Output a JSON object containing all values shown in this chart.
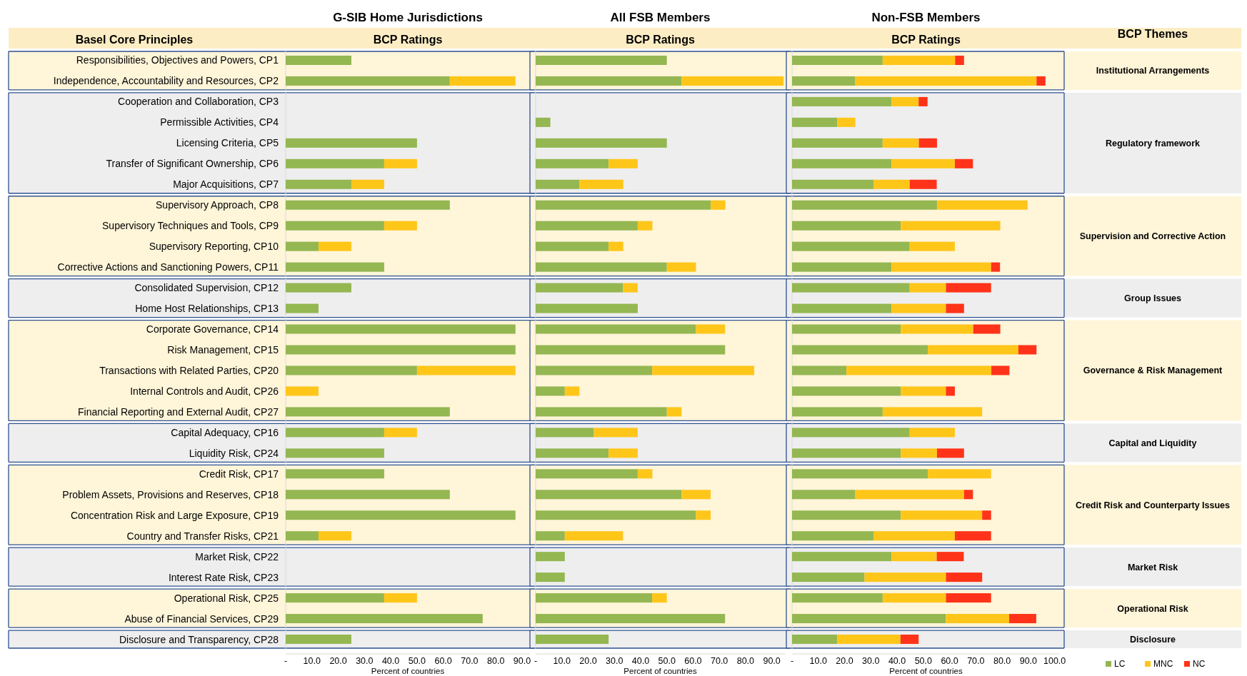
{
  "chart_data": [
    {
      "type": "bar",
      "orientation": "horizontal",
      "stacked": true,
      "title": "G-SIB Home Jurisdictions",
      "subtitle": "BCP Ratings",
      "ylabel": "Basel Core Principles",
      "xlabel": "Percent of countries",
      "categories": [
        "Responsibilities, Objectives and Powers, CP1",
        "Independence, Accountability and Resources, CP2",
        "Cooperation and Collaboration, CP3",
        "Permissible Activities, CP4",
        "Licensing Criteria, CP5",
        "Transfer of Significant Ownership, CP6",
        "Major Acquisitions, CP7",
        "Supervisory Approach, CP8",
        "Supervisory Techniques and Tools, CP9",
        "Supervisory Reporting, CP10",
        "Corrective Actions and Sanctioning Powers, CP11",
        "Consolidated Supervision, CP12",
        "Home Host Relationships, CP13",
        "Corporate Governance, CP14",
        "Risk Management, CP15",
        "Transactions with Related Parties, CP20",
        "Internal Controls and Audit, CP26",
        "Financial Reporting and External Audit, CP27",
        "Capital Adequacy, CP16",
        "Liquidity Risk, CP24",
        "Credit Risk, CP17",
        "Problem Assets, Provisions and Reserves, CP18",
        "Concentration Risk and Large Exposure, CP19",
        "Country and Transfer Risks, CP21",
        "Market Risk, CP22",
        "Interest Rate Risk, CP23",
        "Operational Risk, CP25",
        "Abuse of Financial Services, CP29",
        "Disclosure and Transparency, CP28"
      ],
      "series": [
        {
          "color": "#94b752",
          "values": [
            25,
            62.5,
            null,
            null,
            50,
            37.5,
            25,
            62.5,
            37.5,
            12.5,
            37.5,
            25,
            12.5,
            87.5,
            87.5,
            50,
            null,
            62.5,
            37.5,
            37.5,
            37.5,
            62.5,
            87.5,
            12.5,
            null,
            null,
            37.5,
            75,
            25
          ]
        },
        {
          "color": "#ffc61a",
          "values": [
            null,
            25,
            null,
            null,
            null,
            12.5,
            12.5,
            null,
            12.5,
            12.5,
            null,
            null,
            null,
            null,
            null,
            37.5,
            12.5,
            null,
            12.5,
            null,
            null,
            null,
            null,
            12.5,
            null,
            null,
            12.5,
            null,
            null
          ]
        }
      ],
      "xlim": [
        0,
        93
      ],
      "xticks": [
        {
          "value": 0,
          "label": "-"
        },
        {
          "value": 10,
          "label": "10.0"
        },
        {
          "value": 20,
          "label": "20.0"
        },
        {
          "value": 30,
          "label": "30.0"
        },
        {
          "value": 40,
          "label": "40.0"
        },
        {
          "value": 50,
          "label": "50.0"
        },
        {
          "value": 60,
          "label": "60.0"
        },
        {
          "value": 70,
          "label": "70.0"
        },
        {
          "value": 80,
          "label": "80.0"
        },
        {
          "value": 90,
          "label": "90.0"
        }
      ],
      "bands": [
        {
          "axis": "y",
          "from": "Responsibilities, Objectives and Powers, CP1",
          "to": "Independence, Accountability and Resources, CP2",
          "color": "#fff5d9"
        },
        {
          "axis": "y",
          "from": "Cooperation and Collaboration, CP3",
          "to": "Major Acquisitions, CP7",
          "color": "#eeeeee"
        },
        {
          "axis": "y",
          "from": "Supervisory Approach, CP8",
          "to": "Corrective Actions and Sanctioning Powers, CP11",
          "color": "#fff5d9"
        },
        {
          "axis": "y",
          "from": "Consolidated Supervision, CP12",
          "to": "Home Host Relationships, CP13",
          "color": "#eeeeee"
        },
        {
          "axis": "y",
          "from": "Corporate Governance, CP14",
          "to": "Financial Reporting and External Audit, CP27",
          "color": "#fff5d9"
        },
        {
          "axis": "y",
          "from": "Capital Adequacy, CP16",
          "to": "Liquidity Risk, CP24",
          "color": "#eeeeee"
        },
        {
          "axis": "y",
          "from": "Credit Risk, CP17",
          "to": "Country and Transfer Risks, CP21",
          "color": "#fff5d9"
        },
        {
          "axis": "y",
          "from": "Market Risk, CP22",
          "to": "Interest Rate Risk, CP23",
          "color": "#eeeeee"
        },
        {
          "axis": "y",
          "from": "Operational Risk, CP25",
          "to": "Abuse of Financial Services, CP29",
          "color": "#fff5d9"
        },
        {
          "axis": "y",
          "from": "Disclosure and Transparency, CP28",
          "to": "Disclosure and Transparency, CP28",
          "color": "#eeeeee"
        }
      ]
    },
    {
      "type": "bar",
      "orientation": "horizontal",
      "stacked": true,
      "title": "All FSB Members",
      "subtitle": "BCP Ratings",
      "xlabel": "Percent of countries",
      "tick_labels": "x",
      "categories": [
        "Responsibilities, Objectives and Powers, CP1",
        "Independence, Accountability and Resources, CP2",
        "Cooperation and Collaboration, CP3",
        "Permissible Activities, CP4",
        "Licensing Criteria, CP5",
        "Transfer of Significant Ownership, CP6",
        "Major Acquisitions, CP7",
        "Supervisory Approach, CP8",
        "Supervisory Techniques and Tools, CP9",
        "Supervisory Reporting, CP10",
        "Corrective Actions and Sanctioning Powers, CP11",
        "Consolidated Supervision, CP12",
        "Home Host Relationships, CP13",
        "Corporate Governance, CP14",
        "Risk Management, CP15",
        "Transactions with Related Parties, CP20",
        "Internal Controls and Audit, CP26",
        "Financial Reporting and External Audit, CP27",
        "Capital Adequacy, CP16",
        "Liquidity Risk, CP24",
        "Credit Risk, CP17",
        "Problem Assets, Provisions and Reserves, CP18",
        "Concentration Risk and Large Exposure, CP19",
        "Country and Transfer Risks, CP21",
        "Market Risk, CP22",
        "Interest Rate Risk, CP23",
        "Operational Risk, CP25",
        "Abuse of Financial Services, CP29",
        "Disclosure and Transparency, CP28"
      ],
      "series": [
        {
          "color": "#94b752",
          "values": [
            50,
            55.6,
            null,
            5.6,
            50,
            27.8,
            16.7,
            66.7,
            38.9,
            27.8,
            50,
            33.3,
            38.9,
            61.1,
            72.2,
            44.4,
            11.1,
            50,
            22.2,
            27.8,
            38.9,
            55.6,
            61.1,
            11.1,
            11.1,
            11.1,
            44.4,
            72.2,
            27.8
          ]
        },
        {
          "color": "#ffc61a",
          "values": [
            null,
            38.9,
            null,
            null,
            null,
            11.1,
            16.7,
            5.6,
            5.6,
            5.6,
            11.1,
            5.6,
            null,
            11.1,
            null,
            38.9,
            5.6,
            5.6,
            16.7,
            11.1,
            5.6,
            11.1,
            5.6,
            22.2,
            null,
            null,
            5.6,
            null,
            null
          ]
        }
      ],
      "xlim": [
        0,
        95
      ],
      "xticks": [
        {
          "value": 0,
          "label": "-"
        },
        {
          "value": 10,
          "label": "10.0"
        },
        {
          "value": 20,
          "label": "20.0"
        },
        {
          "value": 30,
          "label": "30.0"
        },
        {
          "value": 40,
          "label": "40.0"
        },
        {
          "value": 50,
          "label": "50.0"
        },
        {
          "value": 60,
          "label": "60.0"
        },
        {
          "value": 70,
          "label": "70.0"
        },
        {
          "value": 80,
          "label": "80.0"
        },
        {
          "value": 90,
          "label": "90.0"
        }
      ],
      "bands": [
        {
          "axis": "y",
          "from": "Responsibilities, Objectives and Powers, CP1",
          "to": "Independence, Accountability and Resources, CP2",
          "color": "#fff5d9"
        },
        {
          "axis": "y",
          "from": "Cooperation and Collaboration, CP3",
          "to": "Major Acquisitions, CP7",
          "color": "#eeeeee"
        },
        {
          "axis": "y",
          "from": "Supervisory Approach, CP8",
          "to": "Corrective Actions and Sanctioning Powers, CP11",
          "color": "#fff5d9"
        },
        {
          "axis": "y",
          "from": "Consolidated Supervision, CP12",
          "to": "Home Host Relationships, CP13",
          "color": "#eeeeee"
        },
        {
          "axis": "y",
          "from": "Corporate Governance, CP14",
          "to": "Financial Reporting and External Audit, CP27",
          "color": "#fff5d9"
        },
        {
          "axis": "y",
          "from": "Capital Adequacy, CP16",
          "to": "Liquidity Risk, CP24",
          "color": "#eeeeee"
        },
        {
          "axis": "y",
          "from": "Credit Risk, CP17",
          "to": "Country and Transfer Risks, CP21",
          "color": "#fff5d9"
        },
        {
          "axis": "y",
          "from": "Market Risk, CP22",
          "to": "Interest Rate Risk, CP23",
          "color": "#eeeeee"
        },
        {
          "axis": "y",
          "from": "Operational Risk, CP25",
          "to": "Abuse of Financial Services, CP29",
          "color": "#fff5d9"
        },
        {
          "axis": "y",
          "from": "Disclosure and Transparency, CP28",
          "to": "Disclosure and Transparency, CP28",
          "color": "#eeeeee"
        }
      ]
    },
    {
      "type": "bar",
      "orientation": "horizontal",
      "stacked": true,
      "title": "Non-FSB Members",
      "subtitle": "BCP Ratings",
      "xlabel": "Percent of countries",
      "tick_labels": "x",
      "legend": "bottom right",
      "annotations": [
        "BCP Themes"
      ],
      "categories": [
        "Responsibilities, Objectives and Powers, CP1",
        "Independence, Accountability and Resources, CP2",
        "Cooperation and Collaboration, CP3",
        "Permissible Activities, CP4",
        "Licensing Criteria, CP5",
        "Transfer of Significant Ownership, CP6",
        "Major Acquisitions, CP7",
        "Supervisory Approach, CP8",
        "Supervisory Techniques and Tools, CP9",
        "Supervisory Reporting, CP10",
        "Corrective Actions and Sanctioning Powers, CP11",
        "Consolidated Supervision, CP12",
        "Home Host Relationships, CP13",
        "Corporate Governance, CP14",
        "Risk Management, CP15",
        "Transactions with Related Parties, CP20",
        "Internal Controls and Audit, CP26",
        "Financial Reporting and External Audit, CP27",
        "Capital Adequacy, CP16",
        "Liquidity Risk, CP24",
        "Credit Risk, CP17",
        "Problem Assets, Provisions and Reserves, CP18",
        "Concentration Risk and Large Exposure, CP19",
        "Country and Transfer Risks, CP21",
        "Market Risk, CP22",
        "Interest Rate Risk, CP23",
        "Operational Risk, CP25",
        "Abuse of Financial Services, CP29",
        "Disclosure and Transparency, CP28"
      ],
      "series": [
        {
          "name": "LC",
          "color": "#94b752",
          "values": [
            34.5,
            24.1,
            37.9,
            17.2,
            34.5,
            37.9,
            31.0,
            55.2,
            41.4,
            44.8,
            37.9,
            44.8,
            37.9,
            41.4,
            51.7,
            20.7,
            41.4,
            34.5,
            44.8,
            41.4,
            51.7,
            24.1,
            41.4,
            31.0,
            37.9,
            27.6,
            34.5,
            58.6,
            17.2
          ]
        },
        {
          "name": "MNC",
          "color": "#ffc61a",
          "values": [
            27.6,
            69.0,
            10.3,
            6.9,
            13.8,
            24.1,
            13.8,
            34.5,
            37.9,
            17.2,
            37.9,
            13.8,
            20.7,
            27.6,
            34.5,
            55.2,
            17.2,
            37.9,
            17.2,
            13.8,
            24.1,
            41.4,
            31.0,
            31.0,
            17.2,
            31.0,
            24.1,
            24.1,
            24.1
          ]
        },
        {
          "name": "NC",
          "color": "#ff3319",
          "values": [
            3.4,
            3.4,
            3.4,
            null,
            6.9,
            6.9,
            10.3,
            null,
            null,
            null,
            3.4,
            17.2,
            6.9,
            10.3,
            6.9,
            6.9,
            3.4,
            null,
            null,
            10.3,
            null,
            3.4,
            3.4,
            13.8,
            10.3,
            13.8,
            17.2,
            10.3,
            6.9
          ]
        }
      ],
      "xlim": [
        0,
        102
      ],
      "xticks": [
        {
          "value": 0,
          "label": "-"
        },
        {
          "value": 10,
          "label": "10.0"
        },
        {
          "value": 20,
          "label": "20.0"
        },
        {
          "value": 30,
          "label": "30.0"
        },
        {
          "value": 40,
          "label": "40.0"
        },
        {
          "value": 50,
          "label": "50.0"
        },
        {
          "value": 60,
          "label": "60.0"
        },
        {
          "value": 70,
          "label": "70.0"
        },
        {
          "value": 80,
          "label": "80.0"
        },
        {
          "value": 90,
          "label": "90.0"
        },
        {
          "value": 100,
          "label": "100.0"
        }
      ],
      "bands": [
        {
          "axis": "y",
          "from": "Responsibilities, Objectives and Powers, CP1",
          "to": "Independence, Accountability and Resources, CP2",
          "color": "#fff5d9",
          "label": "Institutional Arrangements"
        },
        {
          "axis": "y",
          "from": "Cooperation and Collaboration, CP3",
          "to": "Major Acquisitions, CP7",
          "color": "#eeeeee",
          "label": "Regulatory framework"
        },
        {
          "axis": "y",
          "from": "Supervisory Approach, CP8",
          "to": "Corrective Actions and Sanctioning Powers, CP11",
          "color": "#fff5d9",
          "label": "Supervision and Corrective Action"
        },
        {
          "axis": "y",
          "from": "Consolidated Supervision, CP12",
          "to": "Home Host Relationships, CP13",
          "color": "#eeeeee",
          "label": "Group Issues"
        },
        {
          "axis": "y",
          "from": "Corporate Governance, CP14",
          "to": "Financial Reporting and External Audit, CP27",
          "color": "#fff5d9",
          "label": "Governance & Risk Management"
        },
        {
          "axis": "y",
          "from": "Capital Adequacy, CP16",
          "to": "Liquidity Risk, CP24",
          "color": "#eeeeee",
          "label": "Capital and Liquidity"
        },
        {
          "axis": "y",
          "from": "Credit Risk, CP17",
          "to": "Country and Transfer Risks, CP21",
          "color": "#fff5d9",
          "label": "Credit Risk and Counterparty Issues"
        },
        {
          "axis": "y",
          "from": "Market Risk, CP22",
          "to": "Interest Rate Risk, CP23",
          "color": "#eeeeee",
          "label": "Market Risk"
        },
        {
          "axis": "y",
          "from": "Operational Risk, CP25",
          "to": "Abuse of Financial Services, CP29",
          "color": "#fff5d9",
          "label": "Operational Risk"
        },
        {
          "axis": "y",
          "from": "Disclosure and Transparency, CP28",
          "to": "Disclosure and Transparency, CP28",
          "color": "#eeeeee",
          "label": "Disclosure"
        }
      ]
    }
  ]
}
